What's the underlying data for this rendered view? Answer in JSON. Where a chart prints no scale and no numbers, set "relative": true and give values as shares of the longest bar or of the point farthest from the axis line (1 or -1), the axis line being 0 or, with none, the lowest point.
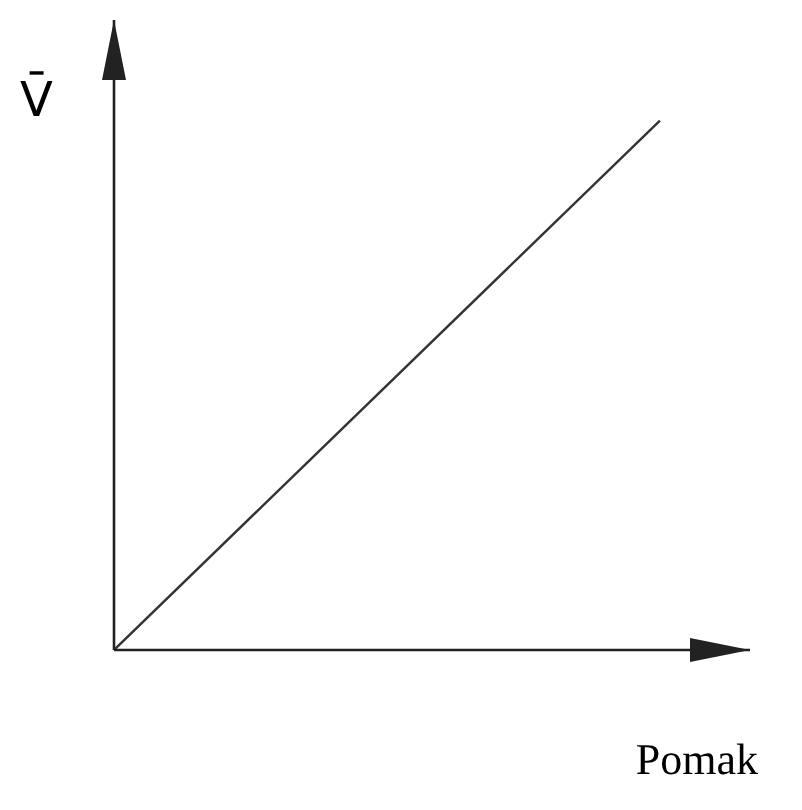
{
  "chart_data": {
    "type": "line",
    "relative": true,
    "xlabel": "Pomak",
    "ylabel": "V̄",
    "categories": [
      null,
      null
    ],
    "series": [
      {
        "color": "#333333",
        "values": [
          0,
          1
        ]
      }
    ],
    "marker": "none",
    "line_style": "solid",
    "grid": false,
    "legend": false
  }
}
